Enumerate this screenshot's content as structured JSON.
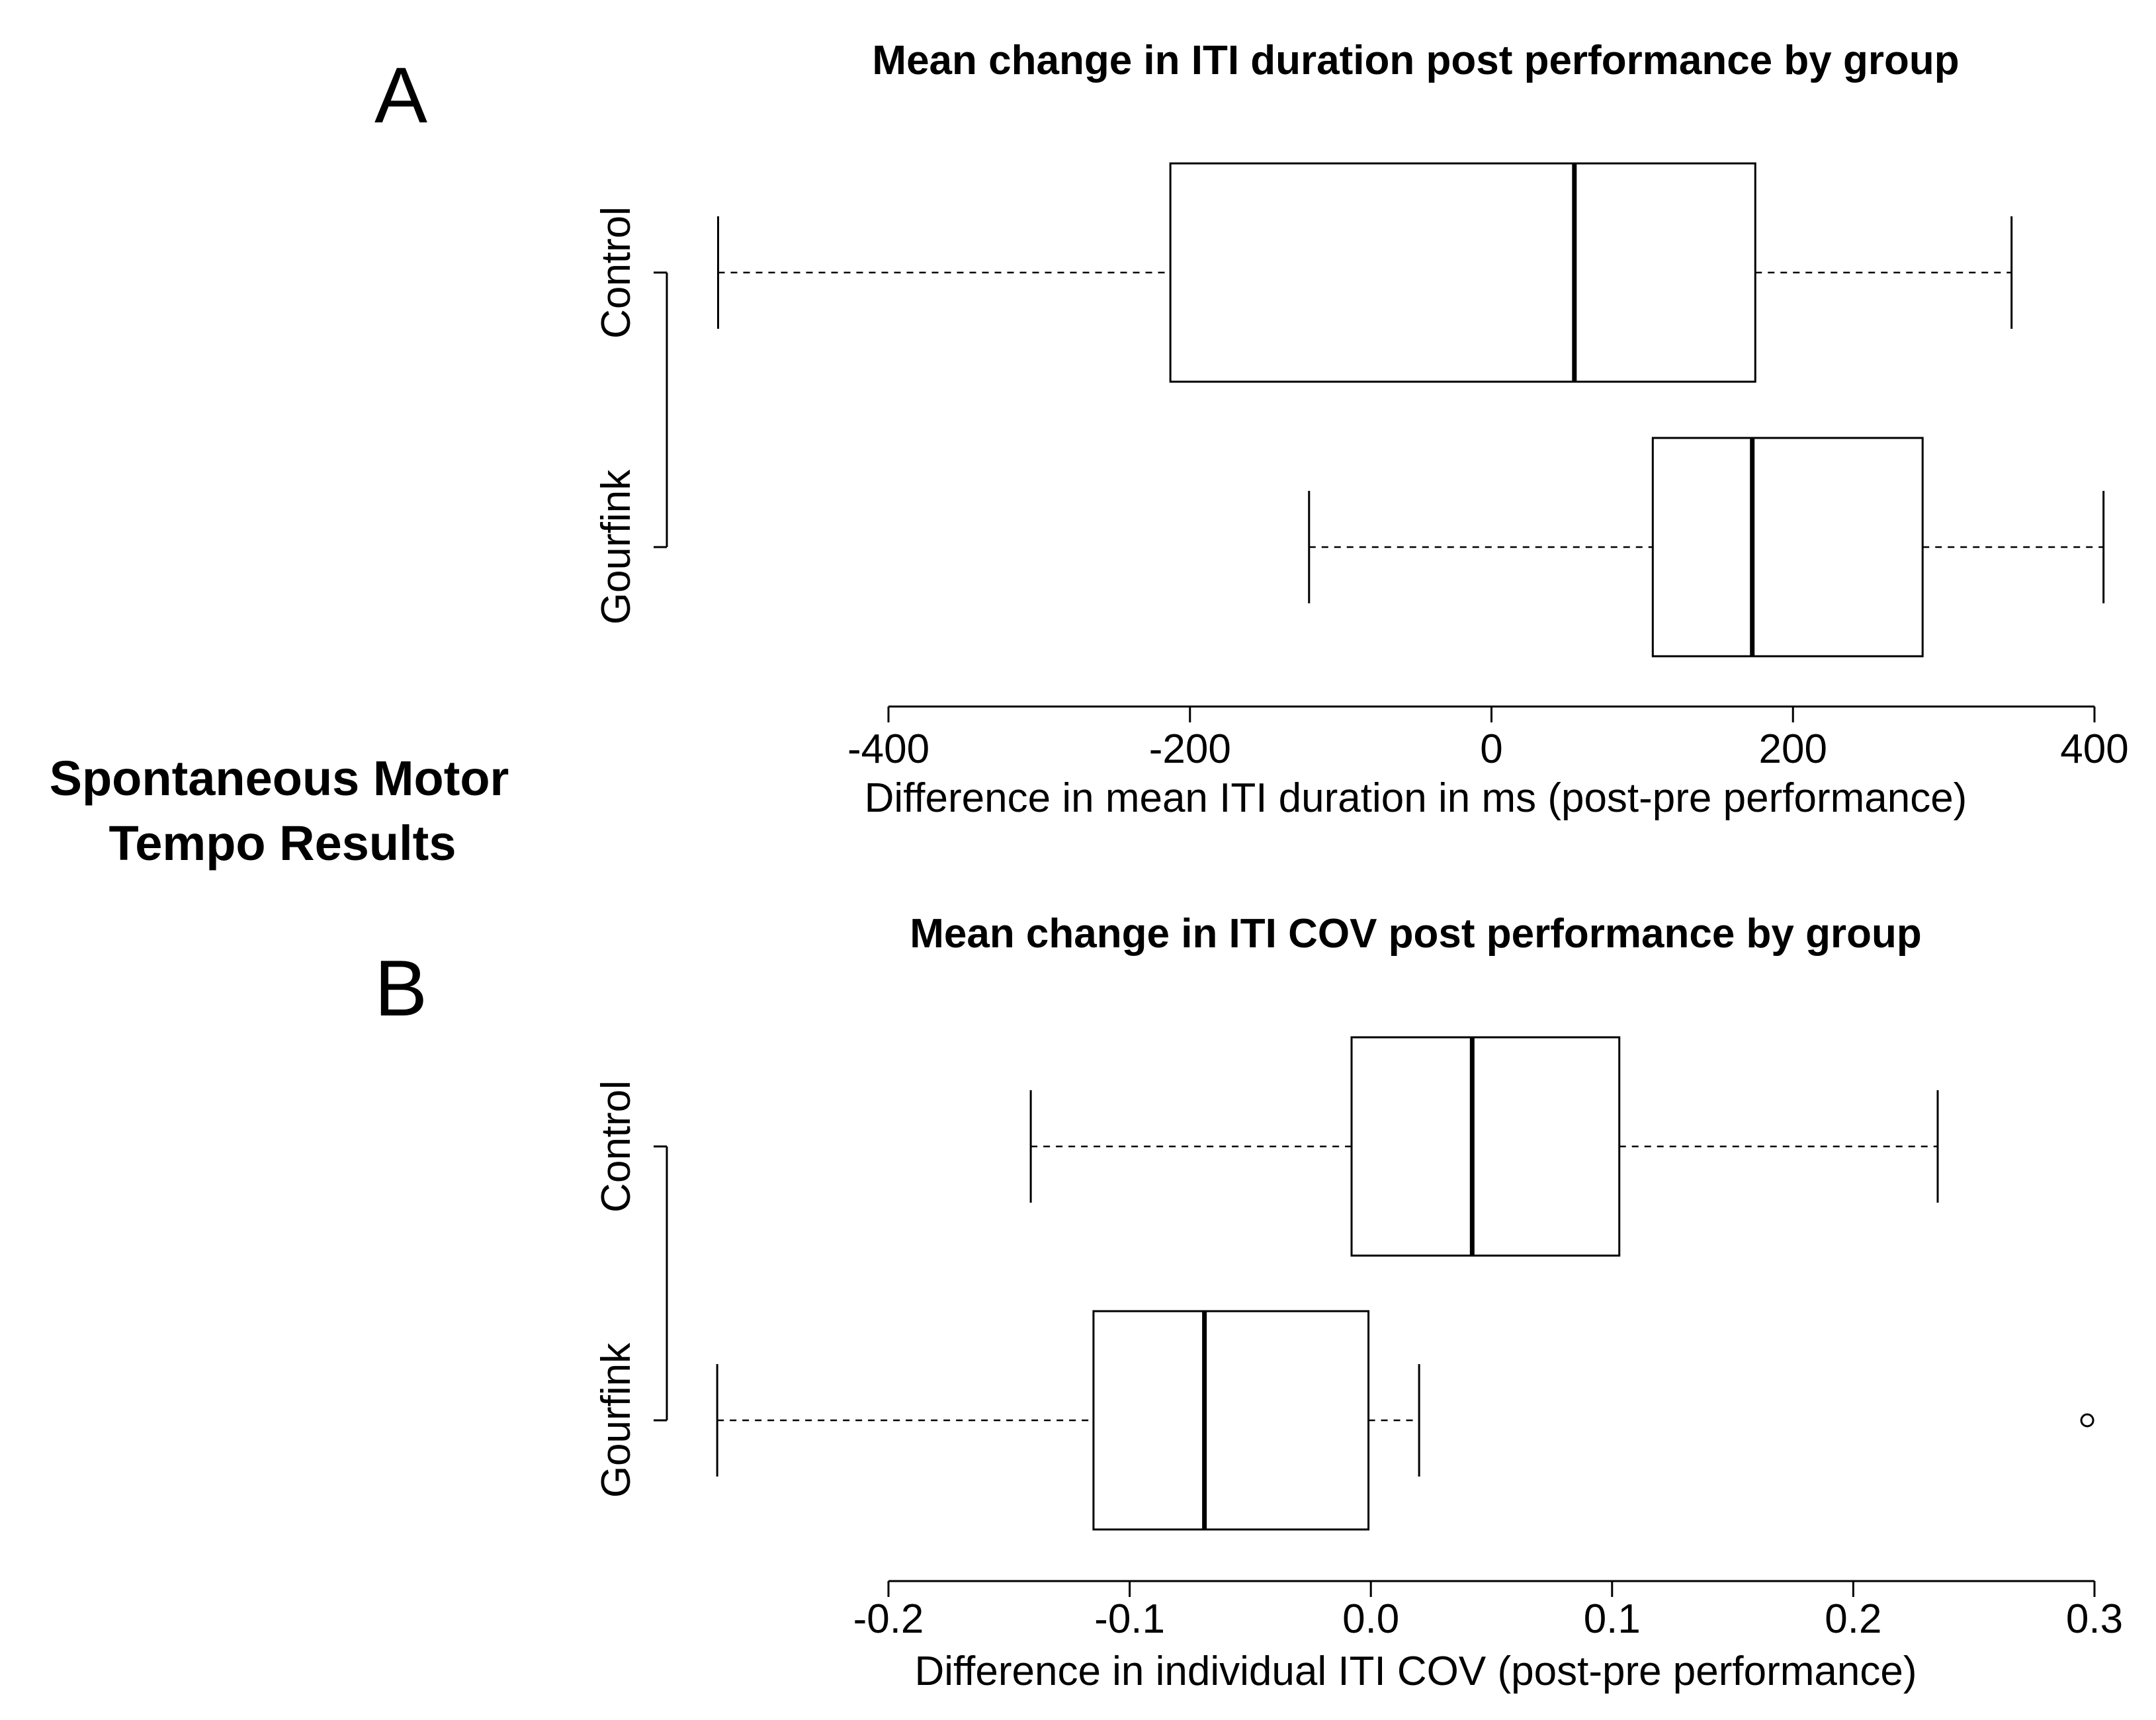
{
  "figure": {
    "side_title_line1": "Spontaneous Motor",
    "side_title_line2": "Tempo Results",
    "line_color": "#000000",
    "box_fill": "#ffffff"
  },
  "chart_data": [
    {
      "type": "boxplot",
      "panel": "A",
      "title": "Mean change in ITI duration post performance by group",
      "xlabel": "Difference in mean ITI duration in ms (post-pre performance)",
      "ylabel": "",
      "xlim": [
        -400,
        400
      ],
      "ticks": [
        -400,
        -200,
        0,
        200,
        400
      ],
      "tick_labels": [
        "-400",
        "-200",
        "0",
        "200",
        "400"
      ],
      "categories": [
        "Control",
        "Gourfink"
      ],
      "series": [
        {
          "name": "Control",
          "whisker_low": -513,
          "q1": -213,
          "median": 55,
          "q3": 175,
          "whisker_high": 345,
          "outliers": []
        },
        {
          "name": "Gourfink",
          "whisker_low": -121,
          "q1": 107,
          "median": 173,
          "q3": 286,
          "whisker_high": 406,
          "outliers": []
        }
      ]
    },
    {
      "type": "boxplot",
      "panel": "B",
      "title": "Mean change in ITI COV  post performance by group",
      "xlabel": "Difference in individual ITI COV (post-pre performance)",
      "ylabel": "",
      "xlim": [
        -0.2,
        0.3
      ],
      "ticks": [
        -0.2,
        -0.1,
        0.0,
        0.1,
        0.2,
        0.3
      ],
      "tick_labels": [
        "-0.2",
        "-0.1",
        "0.0",
        "0.1",
        "0.2",
        "0.3"
      ],
      "categories": [
        "Control",
        "Gourfink"
      ],
      "series": [
        {
          "name": "Control",
          "whisker_low": -0.141,
          "q1": -0.008,
          "median": 0.042,
          "q3": 0.103,
          "whisker_high": 0.235,
          "outliers": []
        },
        {
          "name": "Gourfink",
          "whisker_low": -0.271,
          "q1": -0.115,
          "median": -0.069,
          "q3": -0.001,
          "whisker_high": 0.02,
          "outliers": [
            0.297
          ]
        }
      ]
    }
  ]
}
